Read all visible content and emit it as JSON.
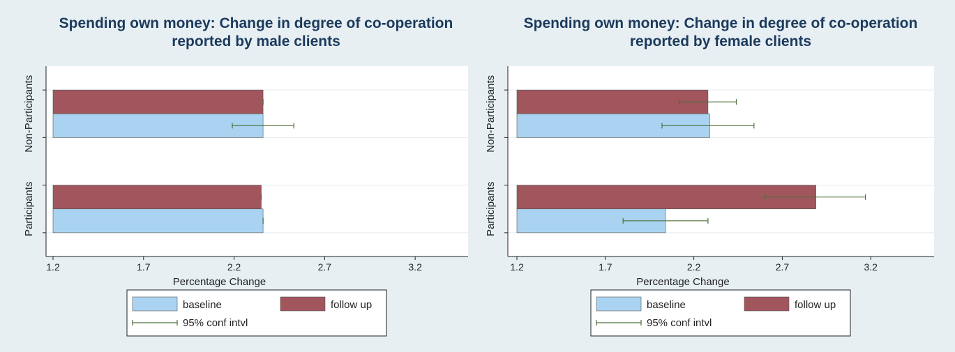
{
  "legend": {
    "baseline": "baseline",
    "follow_up": "follow up",
    "ci": "95% conf intvl"
  },
  "colors": {
    "baseline": "#a9d3f0",
    "follow_up": "#a1565d",
    "ci": "#4e6e3a",
    "panel_bg": "#e7eff3",
    "plot_bg": "#ffffff",
    "title": "#1b3a5c"
  },
  "chart_data": [
    {
      "type": "bar",
      "orientation": "horizontal",
      "title": "Spending own money: Change in degree of co-operation",
      "subtitle": "reported by male clients",
      "xlabel": "Percentage Change",
      "ylabel": "",
      "xlim": [
        1.2,
        3.5
      ],
      "xticks": [
        "1.2",
        "1.7",
        "2.2",
        "2.7",
        "3.2"
      ],
      "categories": [
        "Non-Participants",
        "Participants"
      ],
      "grid": true,
      "legend_position": "bottom",
      "series": [
        {
          "name": "follow up",
          "values": [
            2.36,
            2.35
          ],
          "ci": [
            [
              2.36,
              2.36
            ],
            [
              2.35,
              2.35
            ]
          ]
        },
        {
          "name": "baseline",
          "values": [
            2.36,
            2.36
          ],
          "ci": [
            [
              2.19,
              2.53
            ],
            [
              2.36,
              2.36
            ]
          ]
        }
      ]
    },
    {
      "type": "bar",
      "orientation": "horizontal",
      "title": "Spending own money: Change in degree of co-operation",
      "subtitle": "reported by female clients",
      "xlabel": "Percentage Change",
      "ylabel": "",
      "xlim": [
        1.2,
        3.55
      ],
      "xticks": [
        "1.2",
        "1.7",
        "2.2",
        "2.7",
        "3.2"
      ],
      "categories": [
        "Non-Participants",
        "Participants"
      ],
      "grid": true,
      "legend_position": "bottom",
      "series": [
        {
          "name": "follow up",
          "values": [
            2.28,
            2.89
          ],
          "ci": [
            [
              2.12,
              2.44
            ],
            [
              2.6,
              3.17
            ]
          ]
        },
        {
          "name": "baseline",
          "values": [
            2.29,
            2.04
          ],
          "ci": [
            [
              2.02,
              2.54
            ],
            [
              1.8,
              2.28
            ]
          ]
        }
      ]
    }
  ]
}
